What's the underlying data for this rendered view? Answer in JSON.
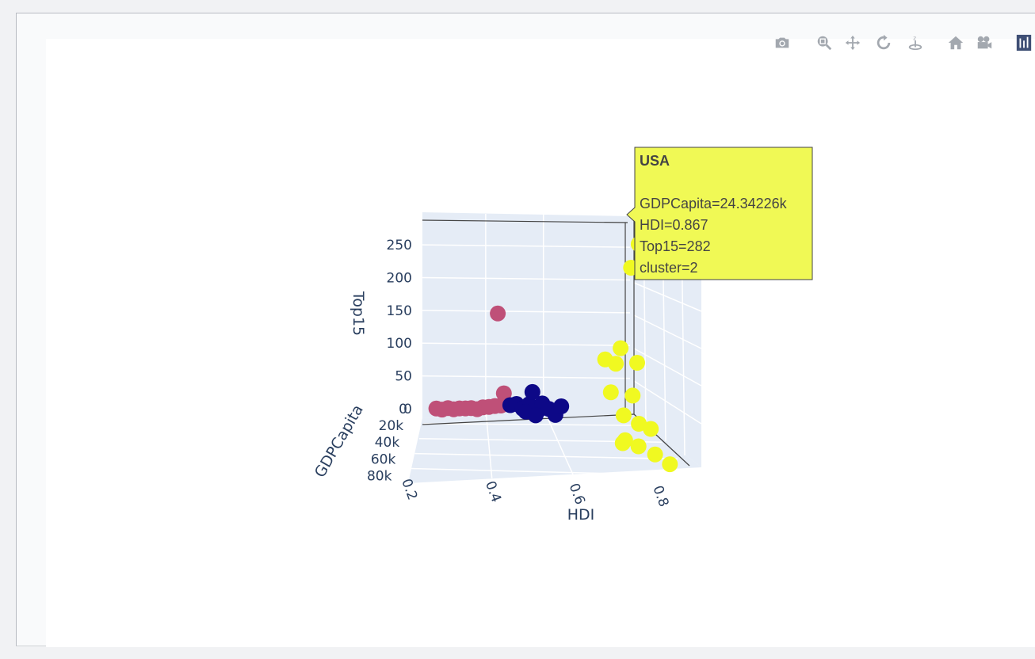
{
  "modebar": {
    "buttons": [
      {
        "name": "camera-icon"
      },
      {
        "name": "zoom-icon"
      },
      {
        "name": "pan-icon"
      },
      {
        "name": "orbit-rotation-icon"
      },
      {
        "name": "turntable-rotation-icon"
      },
      {
        "name": "reset-camera-home-icon"
      },
      {
        "name": "reset-camera-last-save-icon"
      },
      {
        "name": "plotly-logo-icon"
      }
    ]
  },
  "chart_data": {
    "type": "scatter",
    "dimensions": "3d",
    "x_axis": {
      "title": "HDI",
      "ticks": [
        "0.2",
        "0.4",
        "0.6",
        "0.8"
      ],
      "range": [
        0.2,
        0.9
      ]
    },
    "y_axis": {
      "title": "GDPCapita",
      "ticks": [
        "0",
        "20k",
        "40k",
        "60k",
        "80k"
      ],
      "range": [
        0,
        90000
      ]
    },
    "z_axis": {
      "title": "Top15",
      "ticks": [
        "0",
        "50",
        "100",
        "150",
        "200",
        "250"
      ],
      "range": [
        0,
        290
      ]
    },
    "colors": {
      "cluster_0": "#0d0887",
      "cluster_1": "#bf5078",
      "cluster_2": "#f0f921"
    },
    "series": [
      {
        "cluster": 1,
        "points": [
          {
            "hdi": 0.23,
            "gdp": 1500,
            "top15": 2
          },
          {
            "hdi": 0.25,
            "gdp": 2000,
            "top15": 1
          },
          {
            "hdi": 0.27,
            "gdp": 1800,
            "top15": 3
          },
          {
            "hdi": 0.29,
            "gdp": 2500,
            "top15": 2
          },
          {
            "hdi": 0.31,
            "gdp": 3000,
            "top15": 4
          },
          {
            "hdi": 0.33,
            "gdp": 2200,
            "top15": 3
          },
          {
            "hdi": 0.35,
            "gdp": 3500,
            "top15": 5
          },
          {
            "hdi": 0.37,
            "gdp": 4000,
            "top15": 4
          },
          {
            "hdi": 0.39,
            "gdp": 3200,
            "top15": 6
          },
          {
            "hdi": 0.41,
            "gdp": 4500,
            "top15": 8
          },
          {
            "hdi": 0.43,
            "gdp": 5000,
            "top15": 10
          },
          {
            "hdi": 0.45,
            "gdp": 6000,
            "top15": 12
          },
          {
            "hdi": 0.46,
            "gdp": 5500,
            "top15": 30
          },
          {
            "hdi": 0.44,
            "gdp": 4000,
            "top15": 150
          }
        ]
      },
      {
        "cluster": 0,
        "points": [
          {
            "hdi": 0.48,
            "gdp": 8000,
            "top15": 15
          },
          {
            "hdi": 0.5,
            "gdp": 9000,
            "top15": 18
          },
          {
            "hdi": 0.52,
            "gdp": 10000,
            "top15": 12
          },
          {
            "hdi": 0.54,
            "gdp": 11000,
            "top15": 20
          },
          {
            "hdi": 0.55,
            "gdp": 12000,
            "top15": 40
          },
          {
            "hdi": 0.57,
            "gdp": 13000,
            "top15": 14
          },
          {
            "hdi": 0.58,
            "gdp": 14000,
            "top15": 25
          },
          {
            "hdi": 0.6,
            "gdp": 15000,
            "top15": 18
          },
          {
            "hdi": 0.62,
            "gdp": 16000,
            "top15": 10
          },
          {
            "hdi": 0.64,
            "gdp": 15000,
            "top15": 22
          },
          {
            "hdi": 0.53,
            "gdp": 10500,
            "top15": 8
          },
          {
            "hdi": 0.56,
            "gdp": 12500,
            "top15": 5
          }
        ]
      },
      {
        "cluster": 2,
        "points": [
          {
            "hdi": 0.867,
            "gdp": 24342.26,
            "top15": 282,
            "label": "USA"
          },
          {
            "hdi": 0.84,
            "gdp": 26000,
            "top15": 248
          },
          {
            "hdi": 0.8,
            "gdp": 30000,
            "top15": 130
          },
          {
            "hdi": 0.75,
            "gdp": 32000,
            "top15": 115
          },
          {
            "hdi": 0.78,
            "gdp": 33000,
            "top15": 110
          },
          {
            "hdi": 0.85,
            "gdp": 30000,
            "top15": 108
          },
          {
            "hdi": 0.76,
            "gdp": 36000,
            "top15": 70
          },
          {
            "hdi": 0.82,
            "gdp": 38000,
            "top15": 68
          },
          {
            "hdi": 0.79,
            "gdp": 40000,
            "top15": 40
          },
          {
            "hdi": 0.83,
            "gdp": 42000,
            "top15": 30
          },
          {
            "hdi": 0.86,
            "gdp": 44000,
            "top15": 25
          },
          {
            "hdi": 0.77,
            "gdp": 50000,
            "top15": 10
          },
          {
            "hdi": 0.81,
            "gdp": 52000,
            "top15": 8
          },
          {
            "hdi": 0.84,
            "gdp": 60000,
            "top15": 6
          },
          {
            "hdi": 0.86,
            "gdp": 70000,
            "top15": 4
          },
          {
            "hdi": 0.78,
            "gdp": 48000,
            "top15": 12
          }
        ]
      }
    ],
    "hover": {
      "title": "USA",
      "lines": [
        "GDPCapita=24.34226k",
        "HDI=0.867",
        "Top15=282",
        "cluster=2"
      ]
    }
  }
}
